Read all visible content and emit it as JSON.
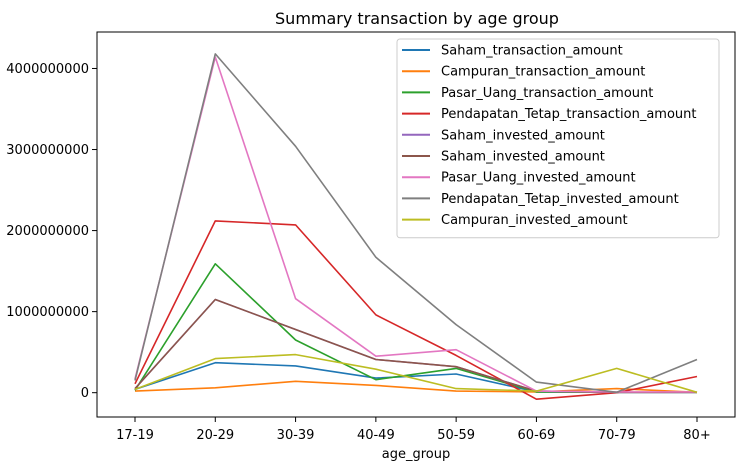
{
  "chart_data": {
    "type": "line",
    "title": "Summary transaction by age group",
    "xlabel": "age_group",
    "ylabel": "",
    "categories": [
      "17-19",
      "20-29",
      "30-39",
      "40-49",
      "50-59",
      "60-69",
      "70-79",
      "80+"
    ],
    "ylim": [
      -300000000,
      4450000000
    ],
    "yticks": [
      0,
      1000000000,
      2000000000,
      3000000000,
      4000000000
    ],
    "ytick_labels": [
      "0",
      "1000000000",
      "2000000000",
      "3000000000",
      "4000000000"
    ],
    "legend_position": "top-right",
    "series": [
      {
        "name": "Saham_transaction_amount",
        "color": "#1f77b4",
        "values": [
          40000000,
          370000000,
          330000000,
          180000000,
          230000000,
          10000000,
          5000000,
          5000000
        ]
      },
      {
        "name": "Campuran_transaction_amount",
        "color": "#ff7f0e",
        "values": [
          20000000,
          60000000,
          140000000,
          90000000,
          20000000,
          10000000,
          50000000,
          5000000
        ]
      },
      {
        "name": "Pasar_Uang_transaction_amount",
        "color": "#2ca02c",
        "values": [
          30000000,
          1590000000,
          650000000,
          160000000,
          300000000,
          10000000,
          5000000,
          5000000
        ]
      },
      {
        "name": "Pendapatan_Tetap_transaction_amount",
        "color": "#d62728",
        "values": [
          110000000,
          2120000000,
          2070000000,
          960000000,
          460000000,
          -80000000,
          0,
          200000000
        ]
      },
      {
        "name": "Saham_invested_amount",
        "color": "#9467bd",
        "values": [
          50000000,
          1150000000,
          780000000,
          410000000,
          320000000,
          20000000,
          5000000,
          5000000
        ]
      },
      {
        "name": "Saham_invested_amount",
        "color": "#8c564b",
        "values": [
          50000000,
          1150000000,
          780000000,
          410000000,
          320000000,
          20000000,
          5000000,
          5000000
        ]
      },
      {
        "name": "Pasar_Uang_invested_amount",
        "color": "#e377c2",
        "values": [
          170000000,
          4140000000,
          1160000000,
          450000000,
          530000000,
          20000000,
          10000000,
          10000000
        ]
      },
      {
        "name": "Pendapatan_Tetap_invested_amount",
        "color": "#7f7f7f",
        "values": [
          150000000,
          4180000000,
          3040000000,
          1670000000,
          840000000,
          130000000,
          5000000,
          410000000
        ]
      },
      {
        "name": "Campuran_invested_amount",
        "color": "#bcbd22",
        "values": [
          40000000,
          420000000,
          470000000,
          290000000,
          50000000,
          20000000,
          300000000,
          5000000
        ]
      }
    ]
  }
}
